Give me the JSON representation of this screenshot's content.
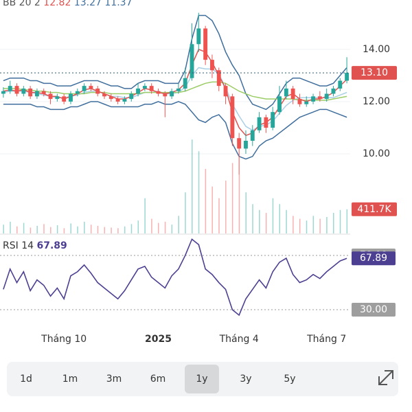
{
  "chart_data": [
    {
      "type": "candlestick",
      "legend": {
        "label": "BB 20 2",
        "values": [
          12.82,
          13.27,
          11.37
        ],
        "colors": [
          "#e0524f",
          "#3f6e9c",
          "#3f6e9c"
        ]
      },
      "categories": [
        null,
        null,
        null,
        null,
        null,
        null,
        null,
        null,
        null,
        "Tháng 10",
        null,
        null,
        null,
        null,
        null,
        null,
        null,
        null,
        null,
        null,
        null,
        null,
        null,
        "2025",
        null,
        null,
        null,
        null,
        null,
        null,
        null,
        null,
        null,
        null,
        null,
        "Tháng 4",
        null,
        null,
        null,
        null,
        null,
        null,
        null,
        null,
        null,
        null,
        null,
        null,
        "Tháng 7",
        null,
        null,
        null
      ],
      "open": [
        12.3,
        12.4,
        12.6,
        12.3,
        12.5,
        12.2,
        12.4,
        12.3,
        12.1,
        12.2,
        12.0,
        12.3,
        12.4,
        12.6,
        12.5,
        12.3,
        12.2,
        12.1,
        12.0,
        12.1,
        12.3,
        12.5,
        12.6,
        12.4,
        12.3,
        12.2,
        12.4,
        12.5,
        12.9,
        14.2,
        14.8,
        13.6,
        13.2,
        12.6,
        12.2,
        10.6,
        10.2,
        10.5,
        10.9,
        11.4,
        11.0,
        11.6,
        12.2,
        12.5,
        12.1,
        11.9,
        12.0,
        12.2,
        12.1,
        12.3,
        12.5,
        12.8
      ],
      "high": [
        12.55,
        12.8,
        12.7,
        12.6,
        12.6,
        12.5,
        12.5,
        12.4,
        12.3,
        12.3,
        12.4,
        12.5,
        12.7,
        12.7,
        12.6,
        12.4,
        12.3,
        12.2,
        12.2,
        12.4,
        12.7,
        12.7,
        12.7,
        12.5,
        12.4,
        12.5,
        12.7,
        13.3,
        15.0,
        15.4,
        14.9,
        13.8,
        13.3,
        12.7,
        12.3,
        10.8,
        10.9,
        11.1,
        11.6,
        11.5,
        11.8,
        12.6,
        12.8,
        12.6,
        12.3,
        12.2,
        12.3,
        12.4,
        12.5,
        12.6,
        12.9,
        13.7
      ],
      "low": [
        12.15,
        12.3,
        12.2,
        12.2,
        12.1,
        12.1,
        12.2,
        11.9,
        12.0,
        11.9,
        11.9,
        12.2,
        12.3,
        12.4,
        12.2,
        12.1,
        12.0,
        11.9,
        11.9,
        12.0,
        12.2,
        12.4,
        12.3,
        12.2,
        11.4,
        12.1,
        12.3,
        12.4,
        12.8,
        13.9,
        13.4,
        12.9,
        12.4,
        11.9,
        10.3,
        9.2,
        10.0,
        10.3,
        10.8,
        10.8,
        10.9,
        11.5,
        12.1,
        11.9,
        11.8,
        11.8,
        11.9,
        12.0,
        12.0,
        12.2,
        12.4,
        12.7
      ],
      "close": [
        12.4,
        12.6,
        12.3,
        12.5,
        12.2,
        12.4,
        12.3,
        12.1,
        12.2,
        12.0,
        12.3,
        12.4,
        12.6,
        12.5,
        12.3,
        12.2,
        12.1,
        12.0,
        12.1,
        12.3,
        12.5,
        12.6,
        12.4,
        12.3,
        12.2,
        12.4,
        12.5,
        12.9,
        14.2,
        14.8,
        13.6,
        13.2,
        12.6,
        12.2,
        10.6,
        10.2,
        10.5,
        10.9,
        11.4,
        11.0,
        11.6,
        12.2,
        12.5,
        12.1,
        11.9,
        12.0,
        12.2,
        12.1,
        12.3,
        12.5,
        12.8,
        13.1
      ],
      "up_color": "#26a69a",
      "down_color": "#ef5350",
      "series": [
        {
          "color": "#3f6e9c",
          "values": [
            12.8,
            12.9,
            12.9,
            12.9,
            12.8,
            12.8,
            12.7,
            12.7,
            12.6,
            12.6,
            12.6,
            12.7,
            12.8,
            12.8,
            12.8,
            12.7,
            12.6,
            12.6,
            12.5,
            12.5,
            12.7,
            12.8,
            12.8,
            12.8,
            12.7,
            12.7,
            12.7,
            13.2,
            14.4,
            15.3,
            15.3,
            15.1,
            14.6,
            13.9,
            13.4,
            13.0,
            12.3,
            11.9,
            11.8,
            11.7,
            11.9,
            12.3,
            12.7,
            12.9,
            12.9,
            12.8,
            12.7,
            12.6,
            12.6,
            12.7,
            13.0,
            13.3
          ]
        },
        {
          "color": "#3f6e9c",
          "values": [
            11.9,
            11.9,
            11.9,
            11.9,
            11.9,
            11.8,
            11.8,
            11.7,
            11.7,
            11.7,
            11.8,
            11.8,
            11.9,
            12.0,
            12.0,
            11.9,
            11.8,
            11.8,
            11.8,
            11.8,
            11.8,
            11.9,
            11.9,
            12.0,
            11.9,
            11.9,
            12.0,
            11.9,
            11.6,
            11.3,
            11.2,
            11.4,
            11.5,
            11.2,
            10.4,
            9.9,
            9.8,
            9.9,
            10.3,
            10.5,
            10.6,
            10.8,
            11.0,
            11.2,
            11.4,
            11.5,
            11.6,
            11.7,
            11.7,
            11.6,
            11.5,
            11.4
          ]
        },
        {
          "color": "#a9cfe6",
          "values": [
            12.35,
            12.4,
            12.4,
            12.4,
            12.35,
            12.3,
            12.25,
            12.2,
            12.15,
            12.15,
            12.2,
            12.25,
            12.35,
            12.4,
            12.4,
            12.3,
            12.2,
            12.2,
            12.15,
            12.15,
            12.25,
            12.35,
            12.35,
            12.4,
            12.3,
            12.3,
            12.35,
            12.55,
            13.0,
            13.3,
            13.25,
            13.25,
            13.05,
            12.55,
            11.9,
            11.45,
            11.05,
            10.9,
            11.05,
            11.1,
            11.25,
            11.55,
            11.85,
            12.05,
            12.15,
            12.15,
            12.15,
            12.15,
            12.15,
            12.15,
            12.25,
            12.35
          ]
        },
        {
          "color": "#9ccc65",
          "values": [
            12.5,
            12.5,
            12.5,
            12.45,
            12.45,
            12.4,
            12.4,
            12.35,
            12.35,
            12.3,
            12.3,
            12.3,
            12.3,
            12.35,
            12.35,
            12.35,
            12.3,
            12.3,
            12.3,
            12.3,
            12.3,
            12.35,
            12.35,
            12.35,
            12.35,
            12.35,
            12.35,
            12.4,
            12.5,
            12.6,
            12.7,
            12.75,
            12.75,
            12.7,
            12.55,
            12.4,
            12.3,
            12.2,
            12.15,
            12.1,
            12.1,
            12.1,
            12.1,
            12.1,
            12.05,
            12.05,
            12.05,
            12.05,
            12.05,
            12.1,
            12.15,
            12.2
          ]
        },
        {
          "color": "#e0524f",
          "values": [
            12.4,
            12.45,
            12.4,
            12.45,
            12.35,
            12.35,
            12.3,
            12.2,
            12.2,
            12.1,
            12.2,
            12.3,
            12.45,
            12.5,
            12.4,
            12.3,
            12.2,
            12.1,
            12.1,
            12.2,
            12.35,
            12.5,
            12.45,
            12.35,
            12.3,
            12.35,
            12.45,
            12.7,
            13.4,
            14.0,
            13.9,
            13.5,
            13.0,
            12.5,
            11.6,
            11.0,
            10.7,
            10.8,
            11.1,
            11.2,
            11.4,
            11.8,
            12.2,
            12.3,
            12.1,
            12.0,
            12.1,
            12.1,
            12.2,
            12.35,
            12.6,
            12.85
          ]
        }
      ],
      "volume": {
        "axis": "y2",
        "values": [
          150000,
          200000,
          120000,
          180000,
          100000,
          130000,
          160000,
          110000,
          140000,
          90000,
          170000,
          120000,
          200000,
          150000,
          130000,
          110000,
          100000,
          90000,
          120000,
          160000,
          220000,
          600000,
          250000,
          180000,
          200000,
          150000,
          300000,
          700000,
          1600000,
          1400000,
          1100000,
          800000,
          600000,
          900000,
          1200000,
          1000000,
          700000,
          500000,
          400000,
          350000,
          600000,
          500000,
          400000,
          300000,
          250000,
          220000,
          300000,
          250000,
          280000,
          350000,
          400000,
          411700
        ]
      },
      "ylim": [
        6.95,
        15.89
      ],
      "yticks": [
        {
          "value": 10,
          "label": "10.00"
        },
        {
          "value": 12,
          "label": "12.00"
        },
        {
          "value": 14,
          "label": "14.00"
        }
      ],
      "y2lim": [
        0,
        3976000
      ],
      "y2ticks": [
        {
          "value": 411700,
          "label": "411.7K"
        }
      ],
      "price_line": {
        "value": 13.1,
        "label": "13.10",
        "color": "#e0524f"
      }
    },
    {
      "type": "line",
      "title": "RSI 14",
      "series": [
        {
          "color": "#4c3f91",
          "values": [
            45,
            60,
            50,
            58,
            44,
            52,
            48,
            40,
            46,
            38,
            55,
            58,
            63,
            57,
            50,
            46,
            42,
            38,
            44,
            52,
            60,
            62,
            54,
            50,
            46,
            55,
            60,
            70,
            82,
            78,
            60,
            56,
            50,
            45,
            30,
            26,
            38,
            45,
            52,
            46,
            58,
            65,
            68,
            56,
            50,
            52,
            56,
            53,
            58,
            62,
            66,
            67.89
          ]
        }
      ],
      "last_value": {
        "value": 67.89,
        "label": "67.89"
      },
      "ylim": [
        20.4,
        83.7
      ],
      "yticks": [
        {
          "value": 70,
          "label": "70.00"
        },
        {
          "value": 30,
          "label": "30.00"
        }
      ]
    }
  ],
  "range_selector": {
    "options": [
      "1d",
      "1m",
      "3m",
      "6m",
      "1y",
      "3y",
      "5y"
    ],
    "selected": 4
  }
}
